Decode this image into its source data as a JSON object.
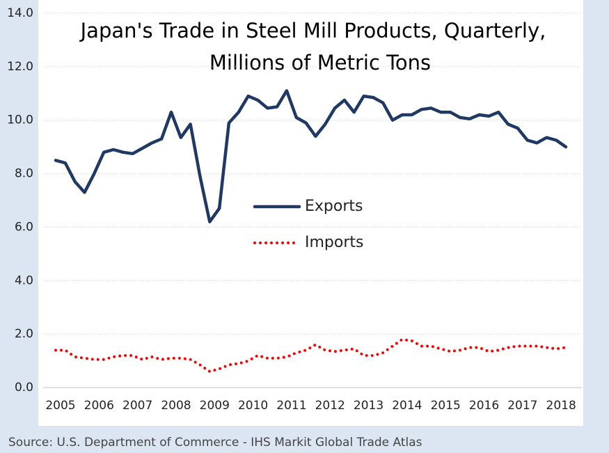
{
  "chart_data": {
    "type": "line",
    "title": [
      "Japan's Trade in Steel Mill Products, Quarterly,",
      "Millions of Metric Tons"
    ],
    "source": "Source: U.S. Department of Commerce - IHS Markit Global Trade Atlas",
    "categories": [
      "2005",
      null,
      null,
      null,
      "2006",
      null,
      null,
      null,
      "2007",
      null,
      null,
      null,
      "2008",
      null,
      null,
      null,
      "2009",
      null,
      null,
      null,
      "2010",
      null,
      null,
      null,
      "2011",
      null,
      null,
      null,
      "2012",
      null,
      null,
      null,
      "2013",
      null,
      null,
      null,
      "2014",
      null,
      null,
      null,
      "2015",
      null,
      null,
      null,
      "2016",
      null,
      null,
      null,
      "2017",
      null,
      null,
      null,
      "2018",
      null
    ],
    "series": [
      {
        "name": "Exports",
        "color": "#1f3864",
        "style": "solid",
        "values": [
          8.5,
          8.4,
          7.7,
          7.3,
          8.0,
          8.8,
          8.9,
          8.8,
          8.75,
          8.95,
          9.15,
          9.3,
          10.3,
          9.35,
          9.85,
          7.9,
          6.2,
          6.7,
          9.9,
          10.3,
          10.9,
          10.75,
          10.45,
          10.5,
          11.1,
          10.1,
          9.9,
          9.4,
          9.85,
          10.45,
          10.75,
          10.3,
          10.9,
          10.85,
          10.65,
          10.0,
          10.2,
          10.2,
          10.4,
          10.45,
          10.3,
          10.3,
          10.1,
          10.05,
          10.2,
          10.15,
          10.3,
          9.85,
          9.7,
          9.25,
          9.15,
          9.35,
          9.25,
          9.0
        ]
      },
      {
        "name": "Imports",
        "color": "#ff0000",
        "style": "dotted",
        "values": [
          1.4,
          1.4,
          1.15,
          1.1,
          1.05,
          1.05,
          1.15,
          1.2,
          1.2,
          1.05,
          1.15,
          1.05,
          1.1,
          1.1,
          1.05,
          0.85,
          0.6,
          0.7,
          0.85,
          0.9,
          1.0,
          1.2,
          1.1,
          1.1,
          1.15,
          1.3,
          1.4,
          1.6,
          1.4,
          1.35,
          1.4,
          1.45,
          1.2,
          1.2,
          1.3,
          1.55,
          1.8,
          1.75,
          1.55,
          1.55,
          1.45,
          1.35,
          1.4,
          1.5,
          1.5,
          1.35,
          1.4,
          1.5,
          1.55,
          1.55,
          1.55,
          1.5,
          1.45,
          1.5
        ]
      }
    ],
    "ylim": [
      0,
      14
    ],
    "yticks": [
      {
        "value": 0,
        "label": "0.0"
      },
      {
        "value": 2,
        "label": "2.0"
      },
      {
        "value": 4,
        "label": "4.0"
      },
      {
        "value": 6,
        "label": "6.0"
      },
      {
        "value": 8,
        "label": "8.0"
      },
      {
        "value": 10,
        "label": "10.0"
      },
      {
        "value": 12,
        "label": "12.0"
      },
      {
        "value": 14,
        "label": "14.0"
      }
    ],
    "grid": true,
    "legend": "center"
  }
}
